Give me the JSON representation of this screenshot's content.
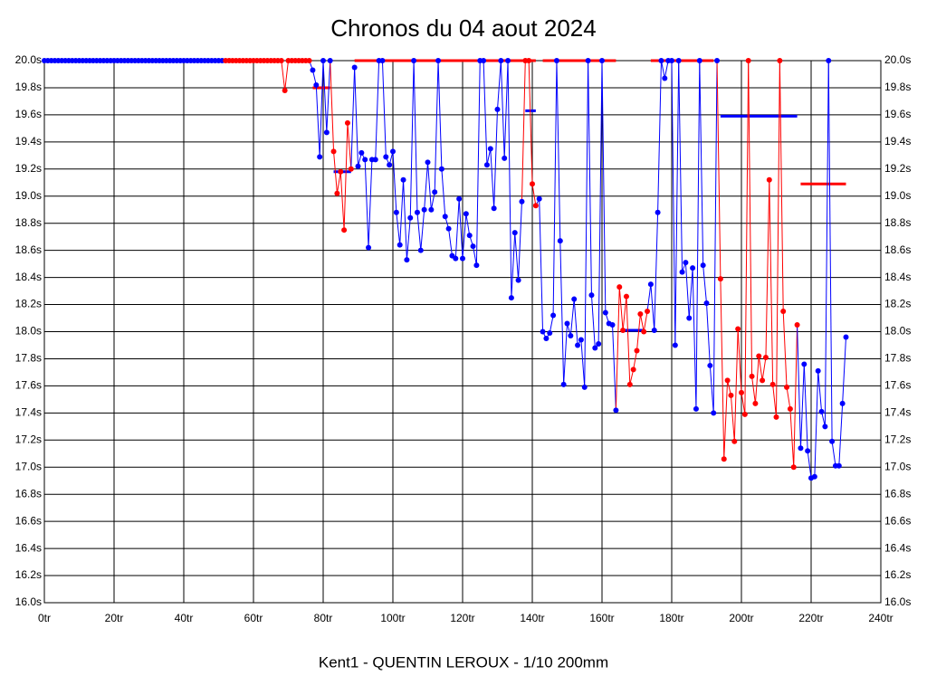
{
  "chart_data": {
    "type": "line",
    "title": "Chronos du 04 aout 2024",
    "xlabel": "Kent1 - QUENTIN LEROUX - 1/10 200mm",
    "xlim": [
      0,
      240
    ],
    "ylim": [
      16,
      20
    ],
    "grid": true,
    "xticks": [
      {
        "value": 0,
        "label": "0tr"
      },
      {
        "value": 20,
        "label": "20tr"
      },
      {
        "value": 40,
        "label": "40tr"
      },
      {
        "value": 60,
        "label": "60tr"
      },
      {
        "value": 80,
        "label": "80tr"
      },
      {
        "value": 100,
        "label": "100tr"
      },
      {
        "value": 120,
        "label": "120tr"
      },
      {
        "value": 140,
        "label": "140tr"
      },
      {
        "value": 160,
        "label": "160tr"
      },
      {
        "value": 180,
        "label": "180tr"
      },
      {
        "value": 200,
        "label": "200tr"
      },
      {
        "value": 220,
        "label": "220tr"
      },
      {
        "value": 240,
        "label": "240tr"
      }
    ],
    "yticks": [
      {
        "value": 16,
        "label": "16.0s"
      },
      {
        "value": 16.2,
        "label": "16.2s"
      },
      {
        "value": 16.4,
        "label": "16.4s"
      },
      {
        "value": 16.6,
        "label": "16.6s"
      },
      {
        "value": 16.8,
        "label": "16.8s"
      },
      {
        "value": 17,
        "label": "17.0s"
      },
      {
        "value": 17.2,
        "label": "17.2s"
      },
      {
        "value": 17.4,
        "label": "17.4s"
      },
      {
        "value": 17.6,
        "label": "17.6s"
      },
      {
        "value": 17.8,
        "label": "17.8s"
      },
      {
        "value": 18,
        "label": "18.0s"
      },
      {
        "value": 18.2,
        "label": "18.2s"
      },
      {
        "value": 18.4,
        "label": "18.4s"
      },
      {
        "value": 18.6,
        "label": "18.6s"
      },
      {
        "value": 18.8,
        "label": "18.8s"
      },
      {
        "value": 19,
        "label": "19.0s"
      },
      {
        "value": 19.2,
        "label": "19.2s"
      },
      {
        "value": 19.4,
        "label": "19.4s"
      },
      {
        "value": 19.6,
        "label": "19.6s"
      },
      {
        "value": 19.8,
        "label": "19.8s"
      },
      {
        "value": 20,
        "label": "20.0s"
      }
    ],
    "x": [
      0,
      1,
      2,
      3,
      4,
      5,
      6,
      7,
      8,
      9,
      10,
      11,
      12,
      13,
      14,
      15,
      16,
      17,
      18,
      19,
      20,
      21,
      22,
      23,
      24,
      25,
      26,
      27,
      28,
      29,
      30,
      31,
      32,
      33,
      34,
      35,
      36,
      37,
      38,
      39,
      40,
      41,
      42,
      43,
      44,
      45,
      46,
      47,
      48,
      49,
      50,
      51,
      52,
      53,
      54,
      55,
      56,
      57,
      58,
      59,
      60,
      61,
      62,
      63,
      64,
      65,
      66,
      67,
      68,
      69,
      70,
      71,
      72,
      73,
      74,
      75,
      76,
      77,
      78,
      79,
      80,
      81,
      82,
      83,
      84,
      85,
      86,
      87,
      88,
      89,
      90,
      91,
      92,
      93,
      94,
      95,
      96,
      97,
      98,
      99,
      100,
      101,
      102,
      103,
      104,
      105,
      106,
      107,
      108,
      109,
      110,
      111,
      112,
      113,
      114,
      115,
      116,
      117,
      118,
      119,
      120,
      121,
      122,
      123,
      124,
      125,
      126,
      127,
      128,
      129,
      130,
      131,
      132,
      133,
      134,
      135,
      136,
      137,
      138,
      139,
      140,
      141,
      142,
      143,
      144,
      145,
      146,
      147,
      148,
      149,
      150,
      151,
      152,
      153,
      154,
      155,
      156,
      157,
      158,
      159,
      160,
      161,
      162,
      163,
      164,
      165,
      166,
      167,
      168,
      169,
      170,
      171,
      172,
      173,
      174,
      175,
      176,
      177,
      178,
      179,
      180,
      181,
      182,
      183,
      184,
      185,
      186,
      187,
      188,
      189,
      190,
      191,
      192,
      193,
      194,
      195,
      196,
      197,
      198,
      199,
      200,
      201,
      202,
      203,
      204,
      205,
      206,
      207,
      208,
      209,
      210,
      211,
      212,
      213,
      214,
      215,
      216,
      217,
      218,
      219,
      220,
      221,
      222,
      223,
      224,
      225,
      226,
      227,
      228,
      229,
      230
    ],
    "series": [
      {
        "values": [
          20,
          20,
          20,
          20,
          20,
          20,
          20,
          20,
          20,
          20,
          20,
          20,
          20,
          20,
          20,
          20,
          20,
          20,
          20,
          20,
          20,
          20,
          20,
          20,
          20,
          20,
          20,
          20,
          20,
          20,
          20,
          20,
          20,
          20,
          20,
          20,
          20,
          20,
          20,
          20,
          20,
          20,
          20,
          20,
          20,
          20,
          20,
          20,
          20,
          20,
          20,
          20,
          20,
          20,
          20,
          20,
          20,
          20,
          20,
          20,
          20,
          20,
          20,
          20,
          20,
          20,
          20,
          20,
          20,
          19.78,
          20,
          20,
          20,
          20,
          20,
          20,
          20,
          19.93,
          19.82,
          19.29,
          20,
          19.47,
          20,
          19.33,
          19.02,
          19.18,
          18.75,
          19.54,
          19.2,
          19.95,
          19.22,
          19.32,
          19.27,
          18.62,
          19.27,
          19.27,
          20,
          20,
          19.29,
          19.23,
          19.33,
          18.88,
          18.64,
          19.12,
          18.53,
          18.84,
          20,
          18.88,
          18.6,
          18.9,
          19.25,
          18.9,
          19.03,
          20,
          19.2,
          18.85,
          18.76,
          18.56,
          18.54,
          18.98,
          18.54,
          18.87,
          18.71,
          18.63,
          18.49,
          20,
          20,
          19.23,
          19.35,
          18.91,
          19.64,
          20,
          19.28,
          20,
          18.25,
          18.73,
          18.38,
          18.96,
          20,
          20,
          19.09,
          18.93,
          18.98,
          18,
          17.95,
          17.99,
          18.12,
          20,
          18.67,
          17.61,
          18.06,
          17.97,
          18.24,
          17.9,
          17.94,
          17.59,
          20,
          18.27,
          17.88,
          17.91,
          20,
          18.14,
          18.06,
          18.05,
          17.42,
          18.33,
          18.01,
          18.26,
          17.61,
          17.72,
          17.86,
          18.13,
          18,
          18.15,
          18.35,
          18.01,
          18.88,
          20,
          19.87,
          20,
          20,
          17.9,
          20,
          18.44,
          18.51,
          18.1,
          18.47,
          17.43,
          20,
          18.49,
          18.21,
          17.75,
          17.4,
          20,
          18.39,
          17.06,
          17.64,
          17.53,
          17.19,
          18.02,
          17.55,
          17.39,
          20,
          17.67,
          17.47,
          17.82,
          17.64,
          17.81,
          19.12,
          17.61,
          17.37,
          20,
          18.15,
          17.59,
          17.43,
          17,
          18.05,
          17.14,
          17.76,
          17.12,
          16.92,
          16.93,
          17.71,
          17.41,
          17.3,
          20,
          17.19,
          17.01,
          17.01,
          17.47,
          17.96
        ],
        "colors": [
          "blue",
          "blue",
          "blue",
          "blue",
          "blue",
          "blue",
          "blue",
          "blue",
          "blue",
          "blue",
          "blue",
          "blue",
          "blue",
          "blue",
          "blue",
          "blue",
          "blue",
          "blue",
          "blue",
          "blue",
          "blue",
          "blue",
          "blue",
          "blue",
          "blue",
          "blue",
          "blue",
          "blue",
          "blue",
          "blue",
          "blue",
          "blue",
          "blue",
          "blue",
          "blue",
          "blue",
          "blue",
          "blue",
          "blue",
          "blue",
          "blue",
          "blue",
          "blue",
          "blue",
          "blue",
          "blue",
          "blue",
          "blue",
          "blue",
          "blue",
          "blue",
          "blue",
          "red",
          "red",
          "red",
          "red",
          "red",
          "red",
          "red",
          "red",
          "red",
          "red",
          "red",
          "red",
          "red",
          "red",
          "red",
          "red",
          "red",
          "red",
          "red",
          "red",
          "red",
          "red",
          "red",
          "red",
          "red",
          "blue",
          "blue",
          "blue",
          "blue",
          "blue",
          "blue",
          "red",
          "red",
          "red",
          "red",
          "red",
          "red",
          "blue",
          "blue",
          "blue",
          "blue",
          "blue",
          "blue",
          "blue",
          "blue",
          "blue",
          "blue",
          "blue",
          "blue",
          "blue",
          "blue",
          "blue",
          "blue",
          "blue",
          "blue",
          "blue",
          "blue",
          "blue",
          "blue",
          "blue",
          "blue",
          "blue",
          "blue",
          "blue",
          "blue",
          "blue",
          "blue",
          "blue",
          "blue",
          "blue",
          "blue",
          "blue",
          "blue",
          "blue",
          "blue",
          "blue",
          "blue",
          "blue",
          "blue",
          "blue",
          "blue",
          "blue",
          "blue",
          "blue",
          "blue",
          "blue",
          "red",
          "red",
          "red",
          "red",
          "blue",
          "blue",
          "blue",
          "blue",
          "blue",
          "blue",
          "blue",
          "blue",
          "blue",
          "blue",
          "blue",
          "blue",
          "blue",
          "blue",
          "blue",
          "blue",
          "blue",
          "blue",
          "blue",
          "blue",
          "blue",
          "blue",
          "blue",
          "red",
          "red",
          "red",
          "red",
          "red",
          "red",
          "red",
          "red",
          "red",
          "blue",
          "blue",
          "blue",
          "blue",
          "blue",
          "blue",
          "blue",
          "blue",
          "blue",
          "blue",
          "blue",
          "blue",
          "blue",
          "blue",
          "blue",
          "blue",
          "blue",
          "blue",
          "blue",
          "blue",
          "red",
          "red",
          "red",
          "red",
          "red",
          "red",
          "red",
          "red",
          "red",
          "red",
          "red",
          "red",
          "red",
          "red",
          "red",
          "red",
          "red",
          "red",
          "red",
          "red",
          "red",
          "red",
          "red",
          "blue",
          "blue",
          "blue",
          "blue",
          "blue",
          "blue",
          "blue",
          "blue",
          "blue",
          "blue",
          "blue",
          "blue",
          "blue",
          "blue"
        ]
      }
    ],
    "segments": [
      {
        "from": 77,
        "to": 82,
        "value": 19.8,
        "color": "red"
      },
      {
        "from": 83,
        "to": 88,
        "value": 19.18,
        "color": "blue"
      },
      {
        "from": 89,
        "to": 141,
        "value": 20,
        "color": "red"
      },
      {
        "from": 138,
        "to": 141,
        "value": 19.63,
        "color": "blue"
      },
      {
        "from": 143,
        "to": 164,
        "value": 20,
        "color": "red"
      },
      {
        "from": 166,
        "to": 172,
        "value": 18.01,
        "color": "blue"
      },
      {
        "from": 174,
        "to": 192,
        "value": 20,
        "color": "red"
      },
      {
        "from": 194,
        "to": 216,
        "value": 19.59,
        "color": "blue"
      },
      {
        "from": 217,
        "to": 230,
        "value": 19.09,
        "color": "red"
      }
    ]
  }
}
